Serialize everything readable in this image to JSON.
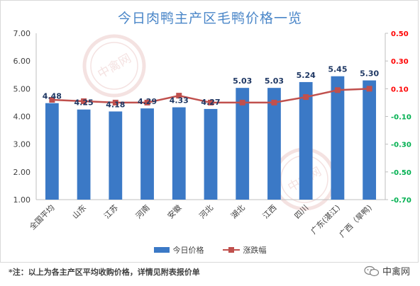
{
  "chart_data": {
    "type": "bar",
    "title": "今日肉鸭主产区毛鸭价格一览",
    "categories": [
      "全国平均",
      "山东",
      "江苏",
      "河南",
      "安徽",
      "河北",
      "湖北",
      "江西",
      "四川",
      "广东(湛江)",
      "广西（旱鸭)"
    ],
    "series": [
      {
        "name": "今日价格",
        "type": "bar",
        "axis": "left",
        "values": [
          4.48,
          4.25,
          4.18,
          4.29,
          4.33,
          4.27,
          5.03,
          5.03,
          5.24,
          5.45,
          5.3
        ],
        "labels": [
          "4.48",
          "4.25",
          "4.18",
          "4.29",
          "4.33",
          "4.27",
          "5.03",
          "5.03",
          "5.24",
          "5.45",
          "5.30"
        ],
        "color": "#3b79c6"
      },
      {
        "name": "涨跌幅",
        "type": "line",
        "axis": "right",
        "values": [
          0.02,
          0.01,
          0.0,
          0.0,
          0.05,
          0.0,
          0.0,
          0.0,
          0.04,
          0.09,
          0.1
        ],
        "color": "#c0504d"
      }
    ],
    "y_left": {
      "min": 1.0,
      "max": 7.0,
      "ticks": [
        "1.00",
        "2.00",
        "3.00",
        "4.00",
        "5.00",
        "6.00",
        "7.00"
      ]
    },
    "y_right": {
      "min": -0.7,
      "max": 0.5,
      "ticks": [
        "0.50",
        "0.30",
        "0.10",
        "-0.10",
        "-0.30",
        "-0.50",
        "-0.70"
      ],
      "positive_color": "#ff0000",
      "negative_color": "#00b050"
    },
    "grid": false,
    "legend_position": "bottom"
  },
  "footnote": "*注：以上为各主产区平均收购价格，详情见附表报价单",
  "brand": {
    "name": "中禽网",
    "icon": "wechat-icon"
  },
  "watermark": {
    "text": "中禽网"
  }
}
